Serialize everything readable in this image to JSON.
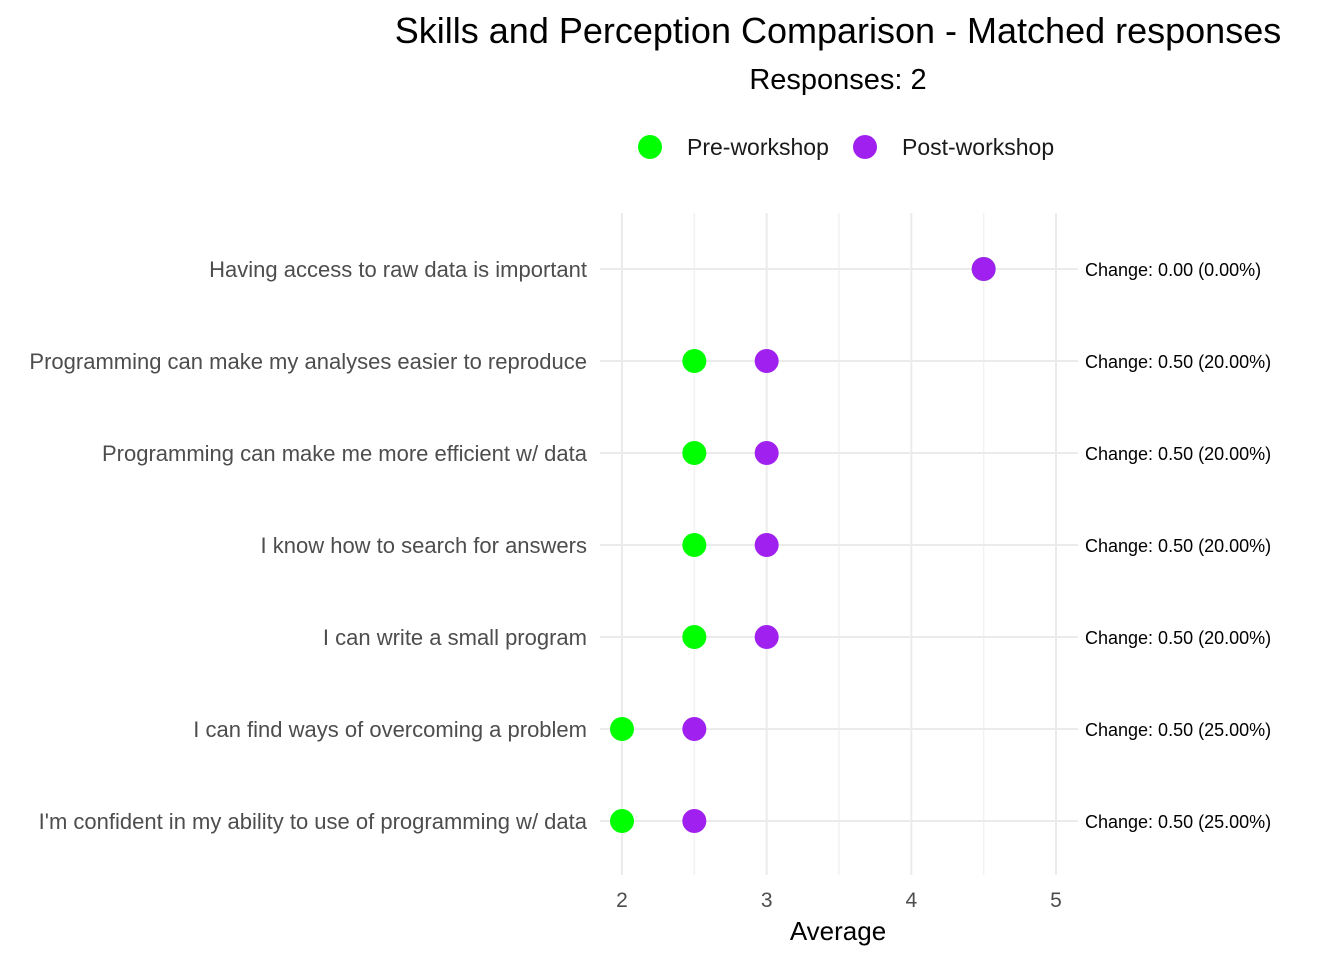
{
  "chart_data": {
    "type": "scatter",
    "title": "Skills and Perception Comparison - Matched responses",
    "subtitle": "Responses: 2",
    "xlabel": "Average",
    "ylabel": "",
    "xlim": [
      2,
      5
    ],
    "xticks": [
      "2",
      "3",
      "4",
      "5"
    ],
    "legend_position": "top",
    "categories": [
      "Having access to raw data is important",
      "Programming can make my analyses easier to reproduce",
      "Programming can make me more efficient w/ data",
      "I know how to search for answers",
      "I can write a small program",
      "I can find ways of overcoming a problem",
      "I'm confident in my ability to use of programming w/ data"
    ],
    "series": [
      {
        "name": "Pre-workshop",
        "color": "#00ff00",
        "values": [
          4.5,
          2.5,
          2.5,
          2.5,
          2.5,
          2.0,
          2.0
        ]
      },
      {
        "name": "Post-workshop",
        "color": "#a020f0",
        "values": [
          4.5,
          3.0,
          3.0,
          3.0,
          3.0,
          2.5,
          2.5
        ]
      }
    ],
    "annotations": [
      "Change: 0.00 (0.00%)",
      "Change: 0.50 (20.00%)",
      "Change: 0.50 (20.00%)",
      "Change: 0.50 (20.00%)",
      "Change: 0.50 (20.00%)",
      "Change: 0.50 (25.00%)",
      "Change: 0.50 (25.00%)"
    ],
    "grid": true
  }
}
